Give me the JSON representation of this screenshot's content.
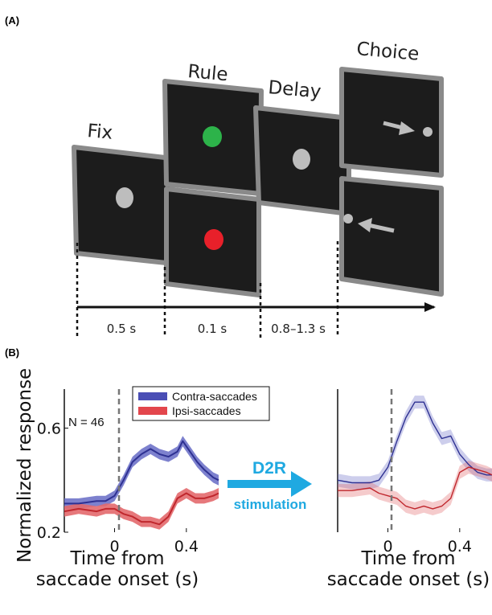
{
  "panel_a": {
    "label": "(A)",
    "stages": {
      "fix": "Fix",
      "rule": "Rule",
      "delay": "Delay",
      "choice": "Choice"
    },
    "durations": [
      "0.5 s",
      "0.1 s",
      "0.8–1.3 s"
    ],
    "colors": {
      "screen": "#1c1c1c",
      "border": "#8a8a8a",
      "fixation": "#bdbdbd",
      "green_cue": "#2db34a",
      "red_cue": "#e8202a"
    }
  },
  "panel_b": {
    "label": "(B)",
    "ylabel": "Normalized response",
    "xlabel_line1": "Time from",
    "xlabel_line2": "saccade onset (s)",
    "n_label": "N = 46",
    "arrow_line1": "D2R",
    "arrow_line2": "stimulation",
    "colors": {
      "contra": "#2e3192",
      "contra_band": "#6f73c9",
      "ipsi": "#c0272d",
      "ipsi_band": "#e3696d",
      "arrow": "#1fa9e1"
    }
  },
  "chart_data": [
    {
      "type": "line",
      "title": "",
      "xlabel": "Time from saccade onset (s)",
      "ylabel": "Normalized response",
      "xlim": [
        -0.28,
        0.58
      ],
      "ylim": [
        0.2,
        0.75
      ],
      "yticks": [
        "0.2",
        "0.6"
      ],
      "xticks": [
        "0",
        "0.4"
      ],
      "legend": {
        "placement": "top",
        "entries": [
          "Contra-saccades",
          "Ipsi-saccades"
        ]
      },
      "series": [
        {
          "name": "Contra-saccades",
          "x": [
            -0.28,
            -0.2,
            -0.1,
            -0.05,
            0.0,
            0.05,
            0.1,
            0.15,
            0.2,
            0.25,
            0.3,
            0.35,
            0.38,
            0.42,
            0.46,
            0.5,
            0.55,
            0.58
          ],
          "y": [
            0.31,
            0.31,
            0.32,
            0.32,
            0.34,
            0.4,
            0.47,
            0.5,
            0.52,
            0.5,
            0.49,
            0.51,
            0.55,
            0.51,
            0.47,
            0.44,
            0.41,
            0.4
          ],
          "band": 0.02
        },
        {
          "name": "Ipsi-saccades",
          "x": [
            -0.28,
            -0.2,
            -0.1,
            -0.05,
            0.0,
            0.05,
            0.1,
            0.15,
            0.2,
            0.25,
            0.3,
            0.35,
            0.4,
            0.45,
            0.5,
            0.55,
            0.58
          ],
          "y": [
            0.28,
            0.29,
            0.28,
            0.29,
            0.29,
            0.27,
            0.26,
            0.24,
            0.24,
            0.23,
            0.26,
            0.33,
            0.35,
            0.33,
            0.33,
            0.34,
            0.35
          ],
          "band": 0.02
        }
      ]
    },
    {
      "type": "line",
      "title": "",
      "xlabel": "Time from saccade onset (s)",
      "ylabel": "Normalized response",
      "xlim": [
        -0.28,
        0.58
      ],
      "ylim": [
        0.2,
        0.75
      ],
      "xticks": [
        "0",
        "0.4"
      ],
      "series": [
        {
          "name": "Contra-saccades",
          "x": [
            -0.28,
            -0.2,
            -0.1,
            -0.05,
            0.0,
            0.05,
            0.1,
            0.15,
            0.2,
            0.25,
            0.3,
            0.35,
            0.4,
            0.45,
            0.5,
            0.55,
            0.58
          ],
          "y": [
            0.4,
            0.39,
            0.39,
            0.4,
            0.45,
            0.55,
            0.64,
            0.7,
            0.7,
            0.62,
            0.56,
            0.57,
            0.5,
            0.46,
            0.43,
            0.42,
            0.42
          ],
          "band": 0.025
        },
        {
          "name": "Ipsi-saccades",
          "x": [
            -0.28,
            -0.2,
            -0.1,
            -0.05,
            0.0,
            0.05,
            0.1,
            0.15,
            0.2,
            0.25,
            0.3,
            0.35,
            0.4,
            0.45,
            0.5,
            0.55,
            0.58
          ],
          "y": [
            0.36,
            0.36,
            0.37,
            0.35,
            0.34,
            0.33,
            0.3,
            0.29,
            0.3,
            0.29,
            0.3,
            0.33,
            0.43,
            0.45,
            0.44,
            0.43,
            0.42
          ],
          "band": 0.025
        }
      ]
    }
  ]
}
